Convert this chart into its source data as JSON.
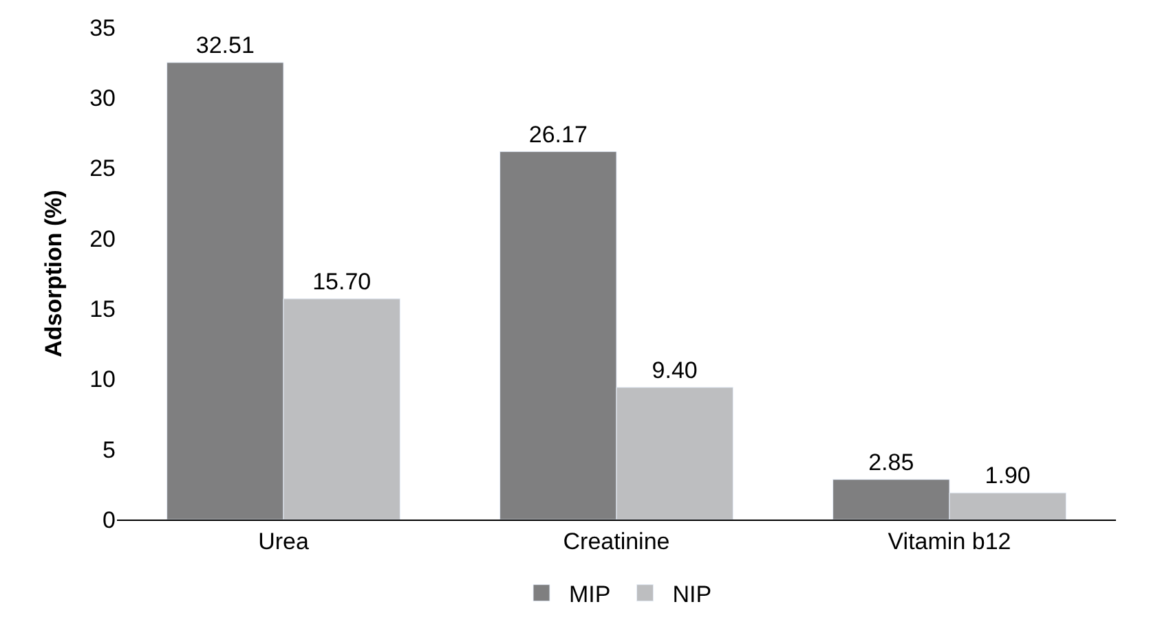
{
  "chart_data": {
    "type": "bar",
    "ylabel": "Adsorption (%)",
    "categories": [
      "Urea",
      "Creatinine",
      "Vitamin b12"
    ],
    "series": [
      {
        "name": "MIP",
        "color": "#7f7f80",
        "values": [
          32.51,
          26.17,
          2.85
        ],
        "value_labels": [
          "32.51",
          "26.17",
          "2.85"
        ]
      },
      {
        "name": "NIP",
        "color": "#bdbec0",
        "values": [
          15.7,
          9.4,
          1.9
        ],
        "value_labels": [
          "15.70",
          "9.40",
          "1.90"
        ]
      }
    ],
    "ylim": [
      0,
      35
    ],
    "yticks": [
      0,
      5,
      10,
      15,
      20,
      25,
      30,
      35
    ],
    "grid": false,
    "legend": "bottom"
  }
}
